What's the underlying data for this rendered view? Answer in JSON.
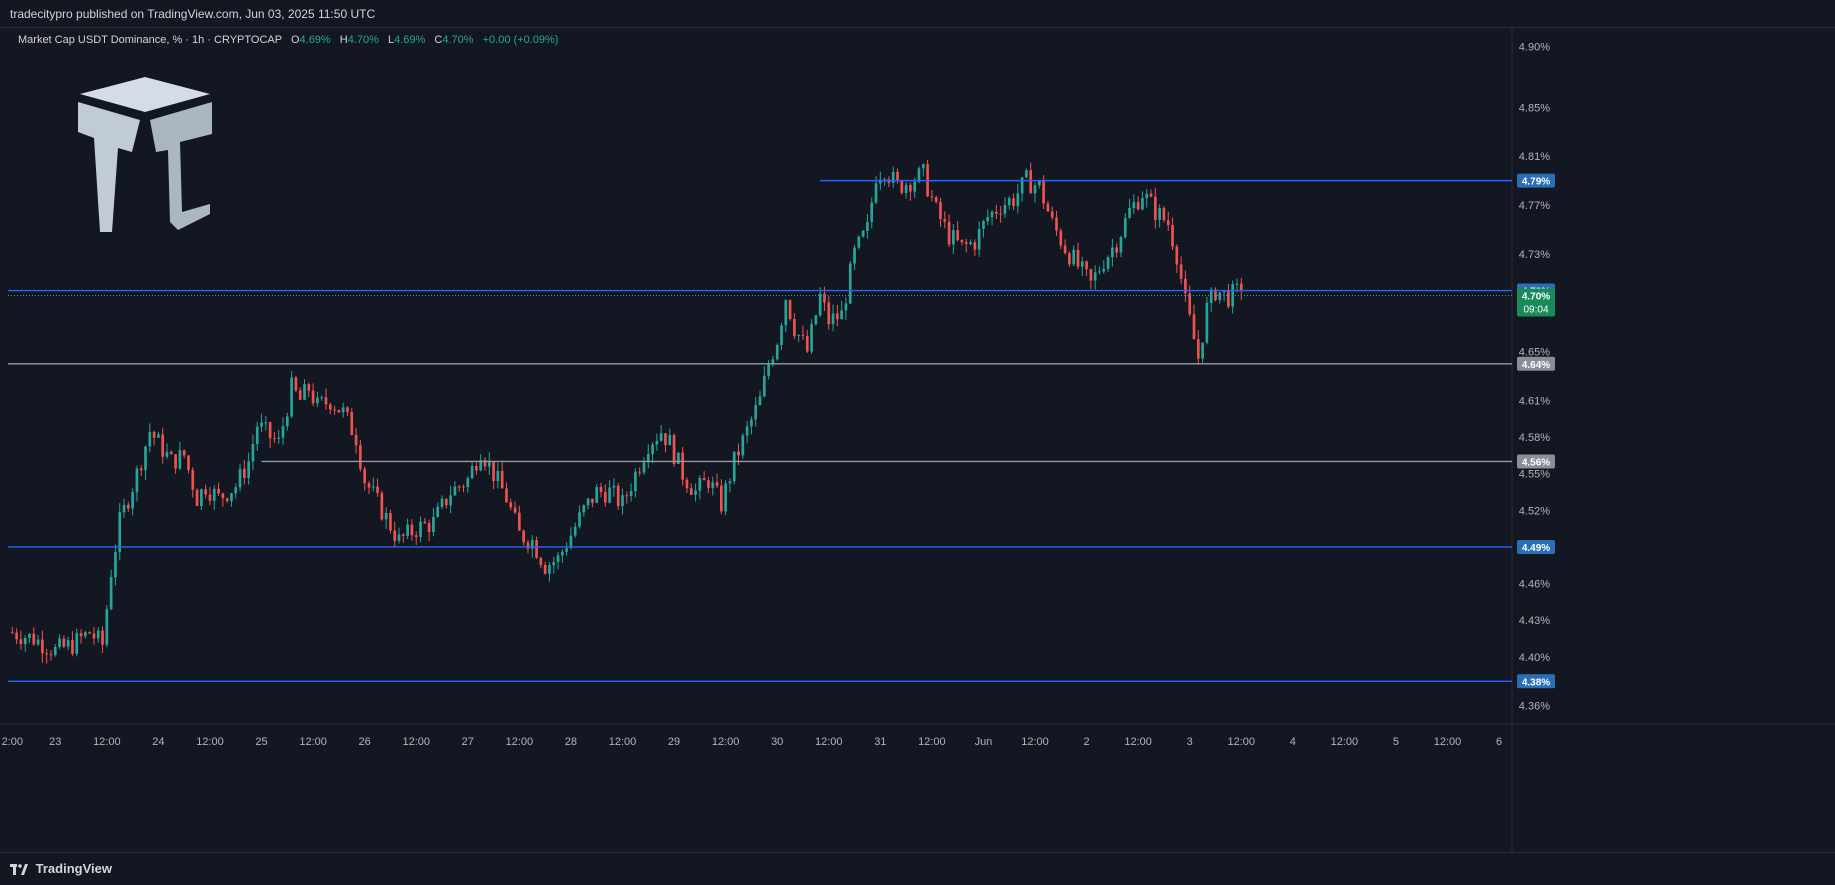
{
  "header": {
    "publish_text": "tradecitypro published on TradingView.com, Jun 03, 2025 11:50 UTC"
  },
  "legend": {
    "symbol": "Market Cap USDT Dominance, % · 1h · CRYPTOCAP",
    "o_label": "O",
    "o_value": "4.69%",
    "h_label": "H",
    "h_value": "4.70%",
    "l_label": "L",
    "l_value": "4.69%",
    "c_label": "C",
    "c_value": "4.70%",
    "change": "+0.00 (+0.09%)"
  },
  "footer": {
    "brand": "TradingView"
  },
  "colors": {
    "background": "#131722",
    "up": "#26a69a",
    "down": "#ef5350",
    "hline_blue": "#2962ff",
    "hline_gray": "#9598a1",
    "price_tag_blue": "#2962ff",
    "price_tag_green": "#26a69a"
  },
  "chart_data": {
    "type": "candlestick",
    "title": "Market Cap USDT Dominance, % · 1h · CRYPTOCAP",
    "y_unit": "%",
    "ylim": [
      4.345,
      4.915
    ],
    "y_ticks": [
      "4.90%",
      "4.85%",
      "4.81%",
      "4.77%",
      "4.73%",
      "4.65%",
      "4.61%",
      "4.58%",
      "4.55%",
      "4.52%",
      "4.46%",
      "4.43%",
      "4.40%",
      "4.36%"
    ],
    "y_tick_values": [
      4.9,
      4.85,
      4.81,
      4.77,
      4.73,
      4.65,
      4.61,
      4.58,
      4.55,
      4.52,
      4.46,
      4.43,
      4.4,
      4.36
    ],
    "x_ticks": [
      {
        "label": "2:00",
        "hour": 0
      },
      {
        "label": "23",
        "hour": 10
      },
      {
        "label": "12:00",
        "hour": 22
      },
      {
        "label": "24",
        "hour": 34
      },
      {
        "label": "12:00",
        "hour": 46
      },
      {
        "label": "25",
        "hour": 58
      },
      {
        "label": "12:00",
        "hour": 70
      },
      {
        "label": "26",
        "hour": 82
      },
      {
        "label": "12:00",
        "hour": 94
      },
      {
        "label": "27",
        "hour": 106
      },
      {
        "label": "12:00",
        "hour": 118
      },
      {
        "label": "28",
        "hour": 130
      },
      {
        "label": "12:00",
        "hour": 142
      },
      {
        "label": "29",
        "hour": 154
      },
      {
        "label": "12:00",
        "hour": 166
      },
      {
        "label": "30",
        "hour": 178
      },
      {
        "label": "12:00",
        "hour": 190
      },
      {
        "label": "31",
        "hour": 202
      },
      {
        "label": "12:00",
        "hour": 214
      },
      {
        "label": "Jun",
        "hour": 226
      },
      {
        "label": "12:00",
        "hour": 238
      },
      {
        "label": "2",
        "hour": 250
      },
      {
        "label": "12:00",
        "hour": 262
      },
      {
        "label": "3",
        "hour": 274
      },
      {
        "label": "12:00",
        "hour": 286
      },
      {
        "label": "4",
        "hour": 298
      },
      {
        "label": "12:00",
        "hour": 310
      },
      {
        "label": "5",
        "hour": 322
      },
      {
        "label": "12:00",
        "hour": 334
      },
      {
        "label": "6",
        "hour": 346
      }
    ],
    "x_range_hours": [
      -1,
      349
    ],
    "close_path": [
      [
        0,
        4.42
      ],
      [
        5,
        4.415
      ],
      [
        10,
        4.405
      ],
      [
        14,
        4.41
      ],
      [
        18,
        4.42
      ],
      [
        21,
        4.41
      ],
      [
        23,
        4.47
      ],
      [
        25,
        4.51
      ],
      [
        27,
        4.53
      ],
      [
        29,
        4.55
      ],
      [
        32,
        4.585
      ],
      [
        34,
        4.575
      ],
      [
        37,
        4.56
      ],
      [
        40,
        4.565
      ],
      [
        43,
        4.53
      ],
      [
        45,
        4.54
      ],
      [
        48,
        4.53
      ],
      [
        52,
        4.54
      ],
      [
        55,
        4.56
      ],
      [
        57,
        4.59
      ],
      [
        60,
        4.58
      ],
      [
        62,
        4.575
      ],
      [
        65,
        4.62
      ],
      [
        67,
        4.61
      ],
      [
        69,
        4.62
      ],
      [
        71,
        4.605
      ],
      [
        74,
        4.61
      ],
      [
        77,
        4.6
      ],
      [
        80,
        4.58
      ],
      [
        82,
        4.545
      ],
      [
        86,
        4.52
      ],
      [
        90,
        4.495
      ],
      [
        94,
        4.505
      ],
      [
        98,
        4.51
      ],
      [
        102,
        4.535
      ],
      [
        106,
        4.545
      ],
      [
        109,
        4.57
      ],
      [
        112,
        4.55
      ],
      [
        115,
        4.53
      ],
      [
        118,
        4.5
      ],
      [
        121,
        4.495
      ],
      [
        124,
        4.475
      ],
      [
        127,
        4.48
      ],
      [
        130,
        4.5
      ],
      [
        133,
        4.52
      ],
      [
        136,
        4.535
      ],
      [
        139,
        4.535
      ],
      [
        142,
        4.525
      ],
      [
        145,
        4.55
      ],
      [
        148,
        4.575
      ],
      [
        151,
        4.585
      ],
      [
        153,
        4.575
      ],
      [
        156,
        4.55
      ],
      [
        159,
        4.535
      ],
      [
        162,
        4.545
      ],
      [
        165,
        4.525
      ],
      [
        168,
        4.56
      ],
      [
        171,
        4.585
      ],
      [
        174,
        4.61
      ],
      [
        176,
        4.64
      ],
      [
        178,
        4.66
      ],
      [
        180,
        4.695
      ],
      [
        182,
        4.67
      ],
      [
        185,
        4.65
      ],
      [
        188,
        4.695
      ],
      [
        190,
        4.675
      ],
      [
        193,
        4.68
      ],
      [
        196,
        4.73
      ],
      [
        199,
        4.75
      ],
      [
        201,
        4.795
      ],
      [
        203,
        4.8
      ],
      [
        206,
        4.785
      ],
      [
        209,
        4.79
      ],
      [
        212,
        4.795
      ],
      [
        215,
        4.765
      ],
      [
        218,
        4.745
      ],
      [
        221,
        4.735
      ],
      [
        224,
        4.74
      ],
      [
        227,
        4.76
      ],
      [
        230,
        4.77
      ],
      [
        233,
        4.775
      ],
      [
        236,
        4.79
      ],
      [
        239,
        4.785
      ],
      [
        242,
        4.755
      ],
      [
        245,
        4.735
      ],
      [
        248,
        4.72
      ],
      [
        251,
        4.705
      ],
      [
        254,
        4.725
      ],
      [
        257,
        4.74
      ],
      [
        260,
        4.765
      ],
      [
        263,
        4.78
      ],
      [
        266,
        4.765
      ],
      [
        269,
        4.755
      ],
      [
        271,
        4.73
      ],
      [
        273,
        4.69
      ],
      [
        275,
        4.66
      ],
      [
        276,
        4.645
      ],
      [
        278,
        4.685
      ],
      [
        280,
        4.7
      ],
      [
        283,
        4.695
      ],
      [
        286,
        4.7
      ]
    ],
    "horizontal_levels": [
      {
        "value": 4.79,
        "label": "4.79%",
        "style": "blue",
        "from_hour": 188
      },
      {
        "value": 4.7,
        "label": "4.70%",
        "style": "blue",
        "from_hour": -1
      },
      {
        "value": 4.64,
        "label": "4.64%",
        "style": "gray",
        "from_hour": -1
      },
      {
        "value": 4.56,
        "label": "4.56%",
        "style": "gray",
        "from_hour": 58
      },
      {
        "value": 4.49,
        "label": "4.49%",
        "style": "blue",
        "from_hour": -1
      },
      {
        "value": 4.38,
        "label": "4.38%",
        "style": "blue",
        "from_hour": -1
      }
    ],
    "current_price": {
      "value": 4.7,
      "label": "4.70%",
      "countdown": "09:04"
    }
  }
}
